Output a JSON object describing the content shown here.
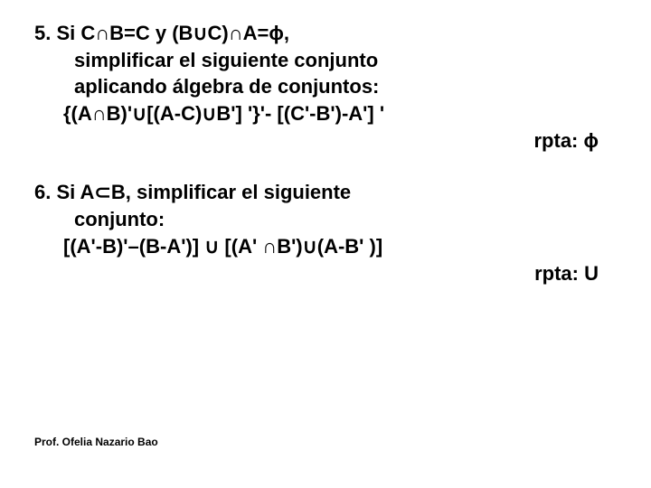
{
  "problem5": {
    "line1": "5. Si C∩B=C y (B∪C)∩A=ϕ,",
    "line2": "simplificar el siguiente  conjunto",
    "line3": "aplicando  álgebra de conjuntos:",
    "line4": "{(A∩B)'∪[(A-C)∪B'] '}'- [(C'-B')-A'] '",
    "answer": "rpta: ϕ"
  },
  "problem6": {
    "line1": "6. Si A⊂B, simplificar el siguiente",
    "line2": "conjunto:",
    "line3": "[(A'-B)'–(B-A')] ∪ [(A' ∩B')∪(A-B' )]",
    "answer": "rpta: U"
  },
  "footer": "Prof. Ofelia Nazario Bao",
  "colors": {
    "text": "#000000",
    "background": "#ffffff"
  },
  "typography": {
    "body_fontsize": 22,
    "body_fontweight": "bold",
    "footer_fontsize": 12
  }
}
